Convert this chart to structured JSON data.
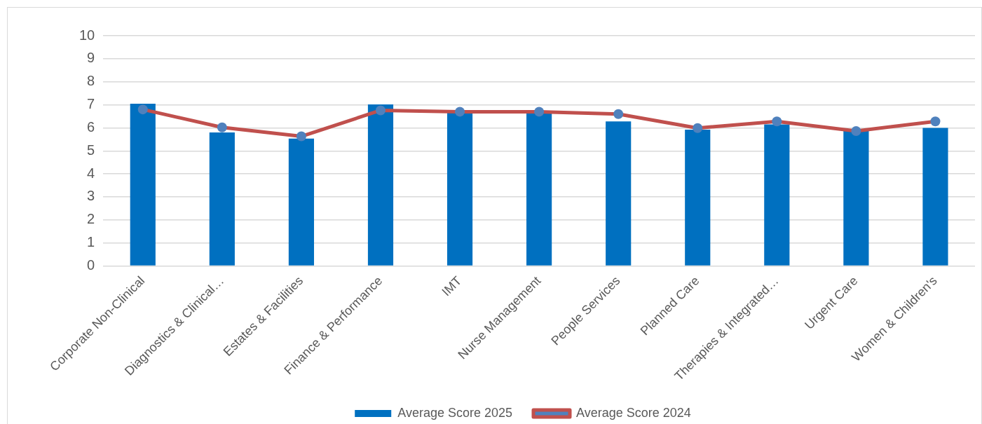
{
  "chart_data": {
    "type": "bar",
    "categories": [
      "Corporate Non-Clinical",
      "Diagnostics & Clinical…",
      "Estates & Facilities",
      "Finance & Performance",
      "IMT",
      "Nurse Management",
      "People Services",
      "Planned Care",
      "Therapies & Integrated…",
      "Urgent Care",
      "Women & Children's"
    ],
    "series": [
      {
        "name": "Average Score 2025",
        "color": "#0070c0",
        "values": [
          7.05,
          5.8,
          5.53,
          7.02,
          6.7,
          6.7,
          6.28,
          5.92,
          6.15,
          5.86,
          6.0
        ]
      },
      {
        "name": "Average Score 2024",
        "type": "line",
        "color": "#c0504d",
        "marker": "circle",
        "values": [
          6.8,
          6.02,
          5.63,
          6.76,
          6.7,
          6.7,
          6.6,
          5.99,
          6.28,
          5.86,
          6.28
        ]
      }
    ],
    "ylim": [
      0,
      10
    ],
    "yticks": [
      0,
      1,
      2,
      3,
      4,
      5,
      6,
      7,
      8,
      9,
      10
    ],
    "grid": "y",
    "legend": "bottom"
  }
}
